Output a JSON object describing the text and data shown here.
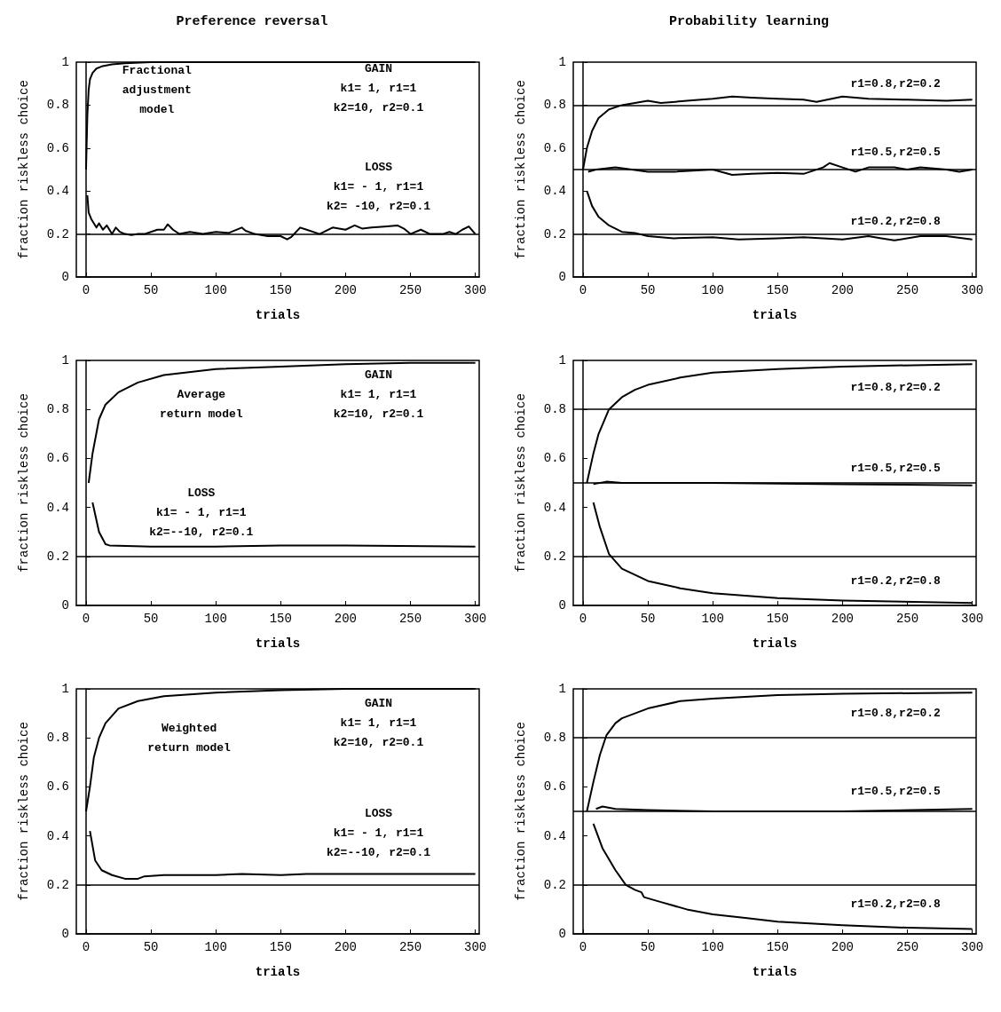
{
  "chart_data": [
    {
      "type": "line",
      "title": "Preference reversal",
      "xlabel": "trials",
      "ylabel": "fraction riskless choice",
      "xlim": [
        -7.5,
        303
      ],
      "ylim": [
        0,
        1
      ],
      "xticks": [
        0,
        50,
        100,
        150,
        200,
        250,
        300
      ],
      "yticks": [
        0,
        0.2,
        0.4,
        0.6,
        0.8,
        1
      ],
      "series": [
        {
          "color": "#000000",
          "x": [
            0,
            1,
            2,
            3,
            5,
            8,
            12,
            20,
            30,
            50,
            100,
            200,
            300
          ],
          "values": [
            0.5,
            0.75,
            0.87,
            0.92,
            0.95,
            0.97,
            0.98,
            0.99,
            0.995,
            1,
            1,
            1,
            1
          ]
        },
        {
          "color": "#000000",
          "x": [
            1,
            2,
            4,
            6,
            8,
            10,
            13,
            16,
            20,
            23,
            26,
            30,
            35,
            40,
            45,
            50,
            55,
            60,
            63,
            67,
            72,
            80,
            90,
            100,
            110,
            120,
            123,
            130,
            140,
            150,
            155,
            158,
            165,
            170,
            180,
            190,
            200,
            207,
            213,
            220,
            230,
            240,
            245,
            250,
            258,
            265,
            275,
            280,
            285,
            290,
            295,
            300
          ],
          "values": [
            0.38,
            0.3,
            0.27,
            0.25,
            0.23,
            0.25,
            0.22,
            0.24,
            0.2,
            0.23,
            0.21,
            0.2,
            0.195,
            0.2,
            0.2,
            0.21,
            0.22,
            0.22,
            0.245,
            0.22,
            0.2,
            0.21,
            0.2,
            0.21,
            0.205,
            0.23,
            0.215,
            0.2,
            0.19,
            0.19,
            0.175,
            0.185,
            0.23,
            0.22,
            0.2,
            0.23,
            0.22,
            0.24,
            0.225,
            0.23,
            0.235,
            0.24,
            0.225,
            0.2,
            0.22,
            0.2,
            0.2,
            0.21,
            0.2,
            0.22,
            0.235,
            0.2
          ]
        }
      ],
      "ref_lines": [
        {
          "axis": "y",
          "value": 0.2,
          "color": "#000000"
        }
      ],
      "annotations": [
        "Fractional\nadjustment\nmodel",
        "GAIN\nk1= 1, r1=1\nk2=10, r2=0.1",
        "LOSS\nk1= - 1, r1=1\nk2= -10, r2=0.1"
      ]
    },
    {
      "type": "line",
      "title": "Probability learning",
      "xlabel": "trials",
      "ylabel": "fraction riskless choice",
      "xlim": [
        -7.5,
        303
      ],
      "ylim": [
        0,
        1
      ],
      "xticks": [
        0,
        50,
        100,
        150,
        200,
        250,
        300
      ],
      "yticks": [
        0,
        0.2,
        0.4,
        0.6,
        0.8,
        1
      ],
      "series": [
        {
          "color": "#000000",
          "x": [
            0,
            3,
            7,
            12,
            20,
            30,
            40,
            50,
            60,
            80,
            100,
            115,
            130,
            150,
            170,
            180,
            200,
            220,
            250,
            280,
            300
          ],
          "values": [
            0.5,
            0.6,
            0.68,
            0.74,
            0.78,
            0.8,
            0.81,
            0.82,
            0.81,
            0.82,
            0.83,
            0.84,
            0.835,
            0.83,
            0.825,
            0.815,
            0.84,
            0.83,
            0.825,
            0.82,
            0.825
          ]
        },
        {
          "color": "#000000",
          "x": [
            4,
            10,
            25,
            50,
            70,
            100,
            115,
            130,
            150,
            170,
            185,
            190,
            200,
            210,
            220,
            240,
            250,
            260,
            280,
            290,
            300
          ],
          "values": [
            0.49,
            0.5,
            0.51,
            0.49,
            0.49,
            0.5,
            0.475,
            0.48,
            0.485,
            0.48,
            0.51,
            0.53,
            0.51,
            0.49,
            0.51,
            0.51,
            0.5,
            0.51,
            0.5,
            0.49,
            0.5
          ]
        },
        {
          "color": "#000000",
          "x": [
            3,
            7,
            12,
            20,
            30,
            40,
            50,
            70,
            100,
            120,
            150,
            170,
            200,
            220,
            230,
            240,
            260,
            280,
            300
          ],
          "values": [
            0.4,
            0.33,
            0.28,
            0.24,
            0.21,
            0.205,
            0.19,
            0.18,
            0.185,
            0.175,
            0.18,
            0.185,
            0.175,
            0.19,
            0.18,
            0.17,
            0.19,
            0.19,
            0.175
          ]
        }
      ],
      "ref_lines": [
        {
          "axis": "y",
          "value": 0.8,
          "color": "#000000"
        },
        {
          "axis": "y",
          "value": 0.5,
          "color": "#000000"
        },
        {
          "axis": "y",
          "value": 0.2,
          "color": "#000000"
        }
      ],
      "annotations": [
        "r1=0.8,r2=0.2",
        "r1=0.5,r2=0.5",
        "r1=0.2,r2=0.8"
      ]
    },
    {
      "type": "line",
      "xlabel": "trials",
      "ylabel": "fraction riskless choice",
      "xlim": [
        -7.5,
        303
      ],
      "ylim": [
        0,
        1
      ],
      "xticks": [
        0,
        50,
        100,
        150,
        200,
        250,
        300
      ],
      "yticks": [
        0,
        0.2,
        0.4,
        0.6,
        0.8,
        1
      ],
      "series": [
        {
          "color": "#000000",
          "x": [
            2,
            5,
            10,
            15,
            25,
            40,
            60,
            100,
            150,
            200,
            250,
            300
          ],
          "values": [
            0.5,
            0.62,
            0.76,
            0.82,
            0.87,
            0.91,
            0.94,
            0.965,
            0.975,
            0.985,
            0.99,
            0.99
          ]
        },
        {
          "color": "#000000",
          "x": [
            5,
            10,
            15,
            18,
            50,
            100,
            150,
            200,
            300
          ],
          "values": [
            0.42,
            0.3,
            0.25,
            0.245,
            0.24,
            0.24,
            0.245,
            0.245,
            0.24
          ]
        }
      ],
      "ref_lines": [
        {
          "axis": "y",
          "value": 0.2,
          "color": "#000000"
        }
      ],
      "annotations": [
        "Average\nreturn model",
        "GAIN\nk1= 1, r1=1\nk2=10, r2=0.1",
        "LOSS\nk1= - 1, r1=1\nk2=--10, r2=0.1"
      ]
    },
    {
      "type": "line",
      "xlabel": "trials",
      "ylabel": "fraction riskless choice",
      "xlim": [
        -7.5,
        303
      ],
      "ylim": [
        0,
        1
      ],
      "xticks": [
        0,
        50,
        100,
        150,
        200,
        250,
        300
      ],
      "yticks": [
        0,
        0.2,
        0.4,
        0.6,
        0.8,
        1
      ],
      "series": [
        {
          "color": "#000000",
          "x": [
            3,
            8,
            12,
            20,
            30,
            40,
            50,
            75,
            100,
            150,
            200,
            300
          ],
          "values": [
            0.5,
            0.62,
            0.7,
            0.8,
            0.85,
            0.88,
            0.9,
            0.93,
            0.95,
            0.965,
            0.975,
            0.985
          ]
        },
        {
          "color": "#000000",
          "x": [
            8,
            18,
            30,
            100,
            200,
            300
          ],
          "values": [
            0.495,
            0.505,
            0.5,
            0.5,
            0.495,
            0.49
          ]
        },
        {
          "color": "#000000",
          "x": [
            8,
            13,
            20,
            30,
            50,
            75,
            100,
            150,
            200,
            300
          ],
          "values": [
            0.42,
            0.32,
            0.21,
            0.15,
            0.1,
            0.07,
            0.05,
            0.03,
            0.02,
            0.01
          ]
        }
      ],
      "ref_lines": [
        {
          "axis": "y",
          "value": 0.8,
          "color": "#000000"
        },
        {
          "axis": "y",
          "value": 0.5,
          "color": "#000000"
        },
        {
          "axis": "y",
          "value": 0.2,
          "color": "#000000"
        }
      ],
      "annotations": [
        "r1=0.8,r2=0.2",
        "r1=0.5,r2=0.5",
        "r1=0.2,r2=0.8"
      ]
    },
    {
      "type": "line",
      "xlabel": "trials",
      "ylabel": "fraction riskless choice",
      "xlim": [
        -7.5,
        303
      ],
      "ylim": [
        0,
        1
      ],
      "xticks": [
        0,
        50,
        100,
        150,
        200,
        250,
        300
      ],
      "yticks": [
        0,
        0.2,
        0.4,
        0.6,
        0.8,
        1
      ],
      "series": [
        {
          "color": "#000000",
          "x": [
            0,
            3,
            6,
            10,
            15,
            25,
            40,
            60,
            100,
            150,
            200,
            300
          ],
          "values": [
            0.5,
            0.6,
            0.72,
            0.8,
            0.86,
            0.92,
            0.95,
            0.97,
            0.985,
            0.995,
            1,
            1
          ]
        },
        {
          "color": "#000000",
          "x": [
            3,
            7,
            12,
            20,
            30,
            40,
            45,
            60,
            100,
            120,
            150,
            170,
            200,
            300
          ],
          "values": [
            0.42,
            0.3,
            0.26,
            0.24,
            0.225,
            0.225,
            0.235,
            0.24,
            0.24,
            0.245,
            0.24,
            0.245,
            0.245,
            0.245
          ]
        }
      ],
      "ref_lines": [
        {
          "axis": "y",
          "value": 0.2,
          "color": "#000000"
        }
      ],
      "annotations": [
        "Weighted\nreturn model",
        "GAIN\nk1= 1, r1=1\nk2=10, r2=0.1",
        "LOSS\nk1= - 1, r1=1\nk2=--10, r2=0.1"
      ]
    },
    {
      "type": "line",
      "xlabel": "trials",
      "ylabel": "fraction riskless choice",
      "xlim": [
        -7.5,
        303
      ],
      "ylim": [
        0,
        1
      ],
      "xticks": [
        0,
        50,
        100,
        150,
        200,
        250,
        300
      ],
      "yticks": [
        0,
        0.2,
        0.4,
        0.6,
        0.8,
        1
      ],
      "series": [
        {
          "color": "#000000",
          "x": [
            3,
            8,
            13,
            18,
            25,
            30,
            50,
            75,
            100,
            150,
            200,
            300
          ],
          "values": [
            0.5,
            0.62,
            0.73,
            0.81,
            0.86,
            0.88,
            0.92,
            0.95,
            0.96,
            0.975,
            0.98,
            0.985
          ]
        },
        {
          "color": "#000000",
          "x": [
            10,
            15,
            25,
            50,
            100,
            200,
            300
          ],
          "values": [
            0.51,
            0.52,
            0.51,
            0.505,
            0.5,
            0.5,
            0.51
          ]
        },
        {
          "color": "#000000",
          "x": [
            8,
            15,
            25,
            33,
            40,
            45,
            47,
            60,
            80,
            100,
            125,
            150,
            200,
            250,
            300
          ],
          "values": [
            0.45,
            0.35,
            0.26,
            0.2,
            0.18,
            0.17,
            0.15,
            0.13,
            0.1,
            0.08,
            0.065,
            0.05,
            0.035,
            0.025,
            0.02
          ]
        }
      ],
      "ref_lines": [
        {
          "axis": "y",
          "value": 0.8,
          "color": "#000000"
        },
        {
          "axis": "y",
          "value": 0.5,
          "color": "#000000"
        },
        {
          "axis": "y",
          "value": 0.2,
          "color": "#000000"
        }
      ],
      "annotations": [
        "r1=0.8,r2=0.2",
        "r1=0.5,r2=0.5",
        "r1=0.2,r2=0.8"
      ]
    }
  ]
}
